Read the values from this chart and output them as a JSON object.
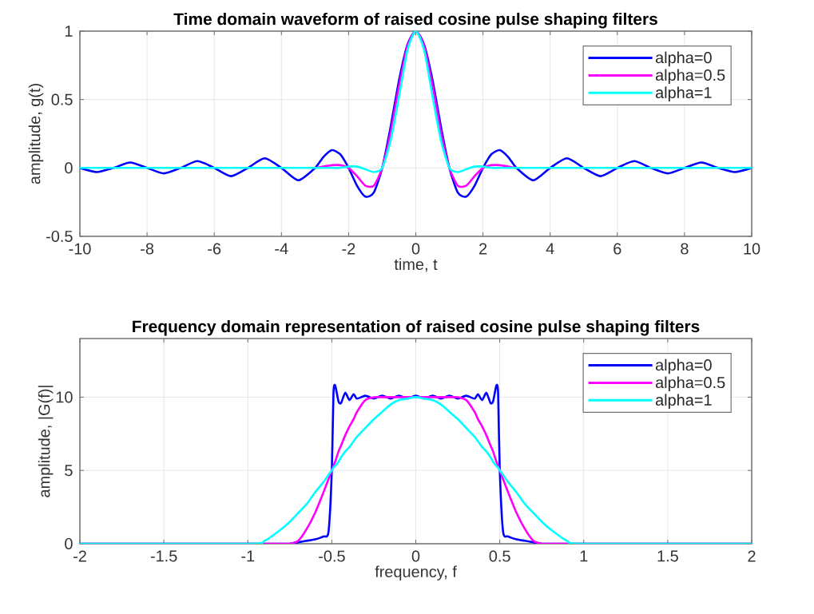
{
  "chart_data": [
    {
      "type": "line",
      "title": "Time domain waveform of raised cosine pulse shaping filters",
      "xlabel": "time, t",
      "ylabel": "amplitude, g(t)",
      "xlim": [
        -10,
        10
      ],
      "ylim": [
        -0.5,
        1
      ],
      "xticks": [
        -10,
        -8,
        -6,
        -4,
        -2,
        0,
        2,
        4,
        6,
        8,
        10
      ],
      "yticks": [
        -0.5,
        0,
        0.5,
        1
      ],
      "grid": true,
      "legend": "top right",
      "x": [
        -10,
        -9.5,
        -9,
        -8.5,
        -8,
        -7.5,
        -7,
        -6.5,
        -6,
        -5.5,
        -5,
        -4.5,
        -4,
        -3.5,
        -3,
        -2.75,
        -2.5,
        -2.25,
        -2,
        -1.75,
        -1.5,
        -1.25,
        -1,
        -0.75,
        -0.5,
        -0.25,
        0,
        0.25,
        0.5,
        0.75,
        1,
        1.25,
        1.5,
        1.75,
        2,
        2.25,
        2.5,
        2.75,
        3,
        3.5,
        4,
        4.5,
        5,
        5.5,
        6,
        6.5,
        7,
        7.5,
        8,
        8.5,
        9,
        9.5,
        10
      ],
      "series": [
        {
          "name": "alpha=0",
          "color": "#0000ff",
          "values": [
            0,
            -0.03,
            0,
            0.04,
            0,
            -0.04,
            0,
            0.05,
            0,
            -0.06,
            0,
            0.07,
            0,
            -0.09,
            0,
            0.08,
            0.13,
            0.1,
            0,
            -0.13,
            -0.21,
            -0.18,
            0,
            0.3,
            0.64,
            0.9,
            1,
            0.9,
            0.64,
            0.3,
            0,
            -0.18,
            -0.21,
            -0.13,
            0,
            0.1,
            0.13,
            0.08,
            0,
            -0.09,
            0,
            0.07,
            0,
            -0.06,
            0,
            0.05,
            0,
            -0.04,
            0,
            0.04,
            0,
            -0.03,
            0
          ]
        },
        {
          "name": "alpha=0.5",
          "color": "#ff00ff",
          "values": [
            null,
            null,
            null,
            null,
            null,
            null,
            null,
            null,
            null,
            null,
            null,
            null,
            null,
            null,
            0,
            0.01,
            0.02,
            0.02,
            0,
            -0.06,
            -0.13,
            -0.13,
            0,
            0.26,
            0.6,
            0.89,
            1,
            0.89,
            0.6,
            0.26,
            0,
            -0.13,
            -0.13,
            -0.06,
            0,
            0.02,
            0.02,
            0.01,
            0,
            null,
            null,
            null,
            null,
            null,
            null,
            null,
            null,
            null,
            null,
            null,
            null,
            null,
            null
          ]
        },
        {
          "name": "alpha=1",
          "color": "#00ffff",
          "values": [
            0,
            0,
            0,
            0,
            0,
            0,
            0,
            0,
            0,
            0,
            0,
            0,
            0,
            0,
            0,
            0,
            0,
            0,
            0.01,
            0.01,
            -0.01,
            -0.03,
            0,
            0.2,
            0.52,
            0.86,
            1,
            0.86,
            0.52,
            0.2,
            0,
            -0.03,
            -0.01,
            0.01,
            0.01,
            0,
            0,
            0,
            0,
            0,
            0,
            0,
            0,
            0,
            0,
            0,
            0,
            0,
            0,
            0,
            0,
            0,
            0
          ]
        }
      ]
    },
    {
      "type": "line",
      "title": "Frequency domain representation of raised cosine pulse shaping filters",
      "xlabel": "frequency, f",
      "ylabel": "amplitude, |G(f)|",
      "xlim": [
        -2,
        2
      ],
      "ylim": [
        0,
        14
      ],
      "xticks": [
        -2,
        -1.5,
        -1,
        -0.5,
        0,
        0.5,
        1,
        1.5,
        2
      ],
      "yticks": [
        0,
        5,
        10
      ],
      "grid": true,
      "legend": "top right",
      "x": [
        -2,
        -1,
        -0.9,
        -0.8,
        -0.75,
        -0.7,
        -0.65,
        -0.6,
        -0.55,
        -0.52,
        -0.5,
        -0.49,
        -0.48,
        -0.46,
        -0.445,
        -0.42,
        -0.395,
        -0.37,
        -0.35,
        -0.3,
        -0.25,
        -0.2,
        -0.15,
        -0.1,
        -0.05,
        0,
        0.05,
        0.1,
        0.15,
        0.2,
        0.25,
        0.3,
        0.35,
        0.37,
        0.395,
        0.42,
        0.445,
        0.46,
        0.48,
        0.49,
        0.5,
        0.52,
        0.55,
        0.6,
        0.65,
        0.7,
        0.75,
        0.8,
        0.9,
        1,
        2
      ],
      "series": [
        {
          "name": "alpha=0",
          "color": "#0000ff",
          "values": [
            0,
            0,
            0,
            0,
            0,
            0.1,
            0.2,
            0.3,
            0.5,
            0.8,
            5,
            10.3,
            10.8,
            9.7,
            9.6,
            10.3,
            9.8,
            10.2,
            9.9,
            10.1,
            9.9,
            10.1,
            9.9,
            10.1,
            9.9,
            10.1,
            9.9,
            10.1,
            9.9,
            10.1,
            9.9,
            10.1,
            9.9,
            10.2,
            9.8,
            10.3,
            9.6,
            9.7,
            10.8,
            10.3,
            5,
            0.8,
            0.5,
            0.3,
            0.2,
            0.1,
            0,
            0,
            0,
            0,
            0
          ]
        },
        {
          "name": "alpha=0.5",
          "color": "#ff00ff",
          "values": [
            0,
            0,
            0,
            0,
            0,
            0.2,
            1,
            2.1,
            3.5,
            4.4,
            5,
            5.3,
            5.6,
            6.3,
            6.7,
            7.4,
            8,
            8.5,
            9,
            9.8,
            10,
            10,
            10,
            10,
            10,
            10,
            10,
            10,
            10,
            10,
            10,
            9.8,
            9,
            8.5,
            8,
            7.4,
            6.7,
            6.3,
            5.6,
            5.3,
            5,
            4.4,
            3.5,
            2.1,
            1,
            0.2,
            0,
            0,
            0,
            0,
            0
          ]
        },
        {
          "name": "alpha=1",
          "color": "#00ffff",
          "values": [
            0,
            0,
            0.2,
            1,
            1.5,
            2.1,
            2.7,
            3.5,
            4.2,
            4.7,
            5,
            5.2,
            5.3,
            5.6,
            5.9,
            6.3,
            6.6,
            7,
            7.3,
            7.9,
            8.5,
            9,
            9.5,
            9.8,
            9.9,
            10,
            9.9,
            9.8,
            9.5,
            9,
            8.5,
            7.9,
            7.3,
            7,
            6.6,
            6.3,
            5.9,
            5.6,
            5.3,
            5.2,
            5,
            4.7,
            4.2,
            3.5,
            2.7,
            2.1,
            1.5,
            1,
            0.2,
            0,
            0
          ]
        }
      ]
    }
  ]
}
